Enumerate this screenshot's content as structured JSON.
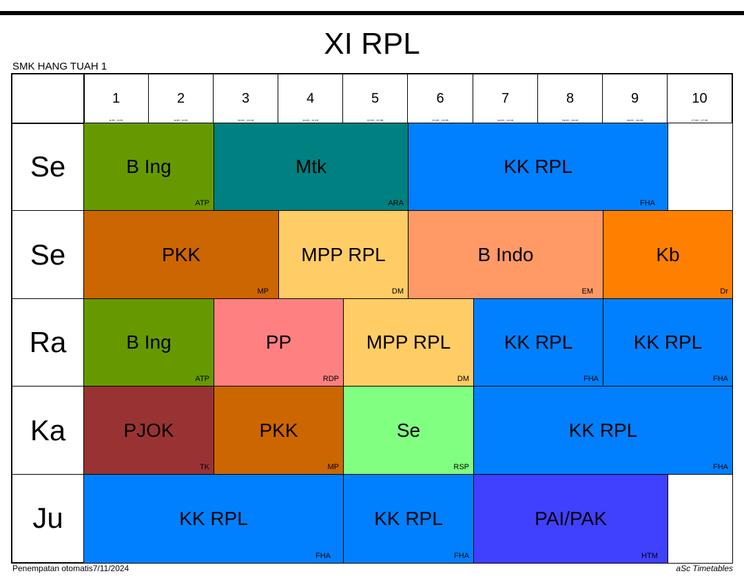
{
  "title": "XI RPL",
  "school": "SMK HANG TUAH 1",
  "footer": {
    "left": "Penempatan otomatis7/11/2024",
    "right": "aSc Timetables"
  },
  "periods": [
    {
      "num": "1",
      "time": "6:30 - 6:15"
    },
    {
      "num": "2",
      "time": "6:50 - 8:15"
    },
    {
      "num": "3",
      "time": "10:00 - 10:15"
    },
    {
      "num": "4",
      "time": "11:00 - 11:15"
    },
    {
      "num": "5",
      "time": "12:30 - 12:35"
    },
    {
      "num": "6",
      "time": "13:20 - 13:35"
    },
    {
      "num": "7",
      "time": "14:00 - 14:15"
    },
    {
      "num": "8",
      "time": "15:00 - 15:15"
    },
    {
      "num": "9",
      "time": "16:00 - 16:15"
    },
    {
      "num": "10",
      "time": "17:00 - 17:15"
    }
  ],
  "days": [
    "Se",
    "Se",
    "Ra",
    "Ka",
    "Ju"
  ],
  "lessons": {
    "r0c0": {
      "subject": "B Ing",
      "teacher": "ATP",
      "color": "#669900"
    },
    "r0c1": {
      "subject": "Mtk",
      "teacher": "ARA",
      "color": "#008080"
    },
    "r0c2": {
      "subject": "KK RPL",
      "teacher": "FHA",
      "color": "#0080ff"
    },
    "r1c0": {
      "subject": "PKK",
      "teacher": "MP",
      "color": "#cc6600"
    },
    "r1c1": {
      "subject": "MPP RPL",
      "teacher": "DM",
      "color": "#ffcc66"
    },
    "r1c2": {
      "subject": "B Indo",
      "teacher": "EM",
      "color": "#ff9966"
    },
    "r1c3": {
      "subject": "Kb",
      "teacher": "Dr",
      "color": "#ff8000"
    },
    "r2c0": {
      "subject": "B Ing",
      "teacher": "ATP",
      "color": "#669900"
    },
    "r2c1": {
      "subject": "PP",
      "teacher": "RDP",
      "color": "#ff8080"
    },
    "r2c2": {
      "subject": "MPP RPL",
      "teacher": "DM",
      "color": "#ffcc66"
    },
    "r2c3": {
      "subject": "KK RPL",
      "teacher": "FHA",
      "color": "#0080ff"
    },
    "r2c4": {
      "subject": "KK RPL",
      "teacher": "FHA",
      "color": "#0080ff"
    },
    "r3c0": {
      "subject": "PJOK",
      "teacher": "TK",
      "color": "#993333"
    },
    "r3c1": {
      "subject": "PKK",
      "teacher": "MP",
      "color": "#cc6600"
    },
    "r3c2": {
      "subject": "Se",
      "teacher": "RSP",
      "color": "#80ff80"
    },
    "r3c3": {
      "subject": "KK RPL",
      "teacher": "FHA",
      "color": "#0080ff"
    },
    "r4c0": {
      "subject": "KK RPL",
      "teacher": "FHA",
      "color": "#0080ff"
    },
    "r4c1": {
      "subject": "KK RPL",
      "teacher": "FHA",
      "color": "#0080ff"
    },
    "r4c2": {
      "subject": "PAI/PAK",
      "teacher": "HTM",
      "color": "#4040ff"
    }
  }
}
